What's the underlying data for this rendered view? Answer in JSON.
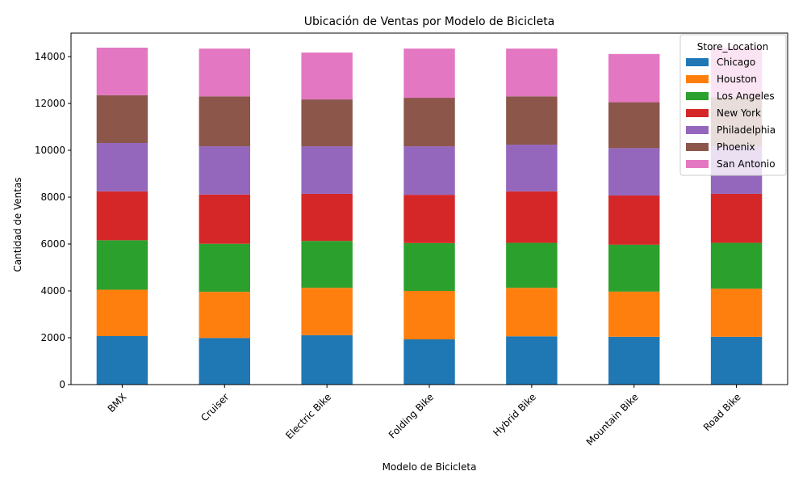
{
  "chart_data": {
    "type": "bar",
    "stacked": true,
    "title": "Ubicación de Ventas por Modelo de Bicicleta",
    "xlabel": "Modelo de Bicicleta",
    "ylabel": "Cantidad de Ventas",
    "ylim": [
      0,
      15000
    ],
    "yticks": [
      "0",
      "2000",
      "4000",
      "6000",
      "8000",
      "10000",
      "12000",
      "14000"
    ],
    "categories": [
      "BMX",
      "Cruiser",
      "Electric Bike",
      "Folding Bike",
      "Hybrid Bike",
      "Mountain Bike",
      "Road Bike"
    ],
    "legend_title": "Store_Location",
    "legend_position": "top-right",
    "grid": false,
    "series": [
      {
        "name": "Chicago",
        "color": "#1f77b4",
        "values": [
          2070,
          1990,
          2110,
          1930,
          2060,
          2040,
          2040
        ]
      },
      {
        "name": "Houston",
        "color": "#ff7f0e",
        "values": [
          1980,
          1970,
          2020,
          2070,
          2070,
          1930,
          2050
        ]
      },
      {
        "name": "Los Angeles",
        "color": "#2ca02c",
        "values": [
          2110,
          2050,
          2000,
          2040,
          1920,
          2000,
          1960
        ]
      },
      {
        "name": "New York",
        "color": "#d62728",
        "values": [
          2090,
          2100,
          2010,
          2060,
          2200,
          2100,
          2090
        ]
      },
      {
        "name": "Philadelphia",
        "color": "#9467bd",
        "values": [
          2060,
          2060,
          2030,
          2070,
          1990,
          2020,
          2030
        ]
      },
      {
        "name": "Phoenix",
        "color": "#8c564b",
        "values": [
          2040,
          2130,
          2000,
          2070,
          2060,
          1960,
          2100
        ]
      },
      {
        "name": "San Antonio",
        "color": "#e377c2",
        "values": [
          2030,
          2040,
          2000,
          2100,
          2040,
          2060,
          2120
        ]
      }
    ]
  }
}
